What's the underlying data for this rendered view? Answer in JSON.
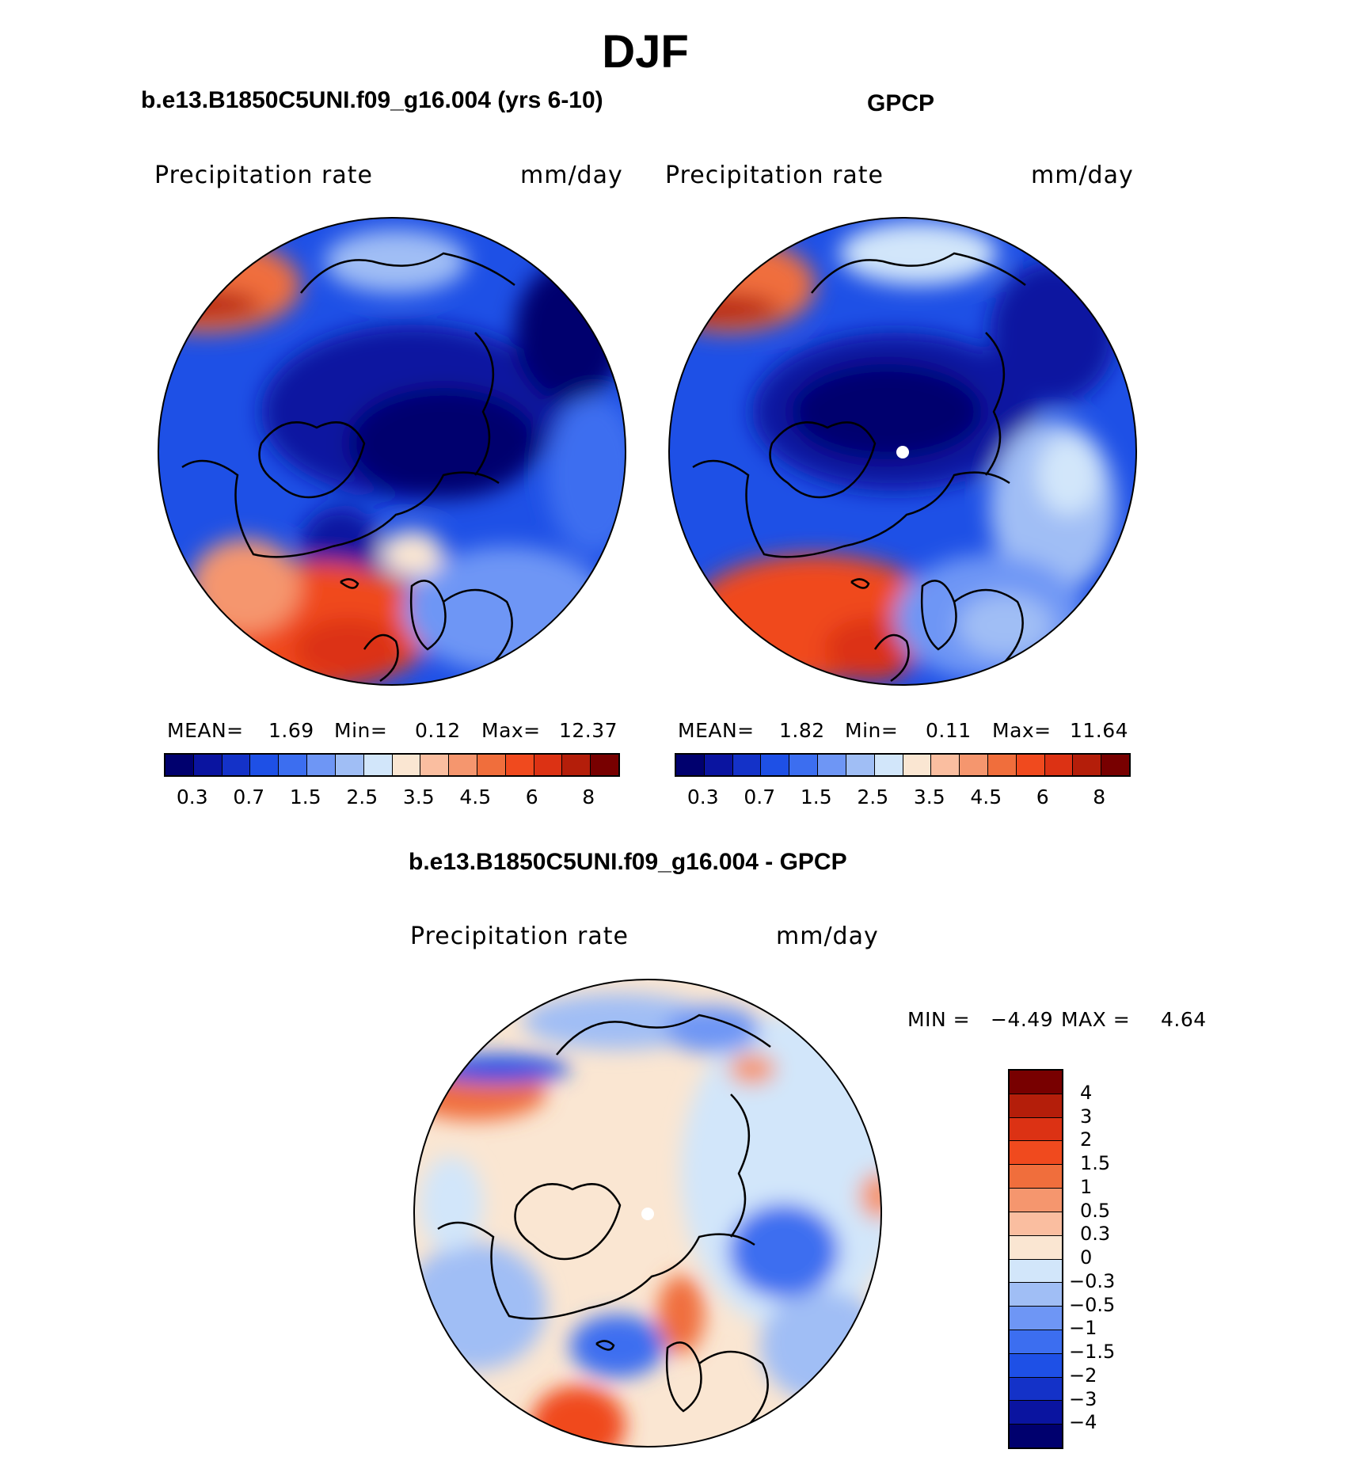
{
  "figure": {
    "title": "DJF"
  },
  "panels": {
    "model": {
      "title": "b.e13.B1850C5UNI.f09_g16.004 (yrs 6-10)",
      "variable": "Precipitation rate",
      "units": "mm/day",
      "stats": {
        "mean_label": "MEAN=",
        "mean": "1.69",
        "min_label": "Min=",
        "min": "0.12",
        "max_label": "Max=",
        "max": "12.37"
      }
    },
    "obs": {
      "title": "GPCP",
      "variable": "Precipitation rate",
      "units": "mm/day",
      "stats": {
        "mean_label": "MEAN=",
        "mean": "1.82",
        "min_label": "Min=",
        "min": "0.11",
        "max_label": "Max=",
        "max": "11.64"
      }
    },
    "diff": {
      "title": "b.e13.B1850C5UNI.f09_g16.004 - GPCP",
      "variable": "Precipitation rate",
      "units": "mm/day",
      "stats": {
        "min_label": "MIN =",
        "min": "−4.49",
        "max_label": "MAX =",
        "max": "4.64"
      }
    }
  },
  "colorbars": {
    "abs": {
      "colors": [
        "#00006e",
        "#0a14a0",
        "#1432c8",
        "#1e50e6",
        "#3c6ef0",
        "#6e96f5",
        "#a0bef5",
        "#d2e6fa",
        "#fae6d2",
        "#fabea0",
        "#f5966e",
        "#f06e3c",
        "#f04a1e",
        "#dc3214",
        "#b41e0a",
        "#780000"
      ],
      "tick_labels": [
        "0.3",
        "0.7",
        "1.5",
        "2.5",
        "3.5",
        "4.5",
        "6",
        "8"
      ]
    },
    "diff": {
      "colors_top_to_bottom": [
        "#780000",
        "#b41e0a",
        "#dc3214",
        "#f04a1e",
        "#f06e3c",
        "#f5966e",
        "#fabea0",
        "#fae6d2",
        "#d2e6fa",
        "#a0bef5",
        "#6e96f5",
        "#3c6ef0",
        "#1e50e6",
        "#1432c8",
        "#0a14a0",
        "#00006e"
      ],
      "tick_labels_top_to_bottom": [
        "4",
        "3",
        "2",
        "1.5",
        "1",
        "0.5",
        "0.3",
        "0",
        "−0.3",
        "−0.5",
        "−1",
        "−1.5",
        "−2",
        "−3",
        "−4"
      ]
    }
  },
  "maps": {
    "projection": "north-polar-stereographic",
    "pole_marker": "white-dot"
  },
  "chart_data": [
    {
      "type": "heatmap",
      "title": "b.e13.B1850C5UNI.f09_g16.004 (yrs 6-10)",
      "field": "Precipitation rate",
      "units": "mm/day",
      "season": "DJF",
      "contour_levels": [
        0.2,
        0.3,
        0.5,
        0.7,
        1,
        1.5,
        2,
        2.5,
        3,
        3.5,
        4,
        4.5,
        5,
        6,
        7,
        8
      ],
      "mean": 1.69,
      "min": 0.12,
      "max": 12.37
    },
    {
      "type": "heatmap",
      "title": "GPCP",
      "field": "Precipitation rate",
      "units": "mm/day",
      "season": "DJF",
      "contour_levels": [
        0.2,
        0.3,
        0.5,
        0.7,
        1,
        1.5,
        2,
        2.5,
        3,
        3.5,
        4,
        4.5,
        5,
        6,
        7,
        8
      ],
      "mean": 1.82,
      "min": 0.11,
      "max": 11.64
    },
    {
      "type": "heatmap",
      "title": "b.e13.B1850C5UNI.f09_g16.004 - GPCP",
      "field": "Precipitation rate",
      "units": "mm/day",
      "season": "DJF",
      "contour_levels": [
        -4,
        -3,
        -2,
        -1.5,
        -1,
        -0.5,
        -0.3,
        0,
        0.3,
        0.5,
        1,
        1.5,
        2,
        3,
        4
      ],
      "min": -4.49,
      "max": 4.64
    }
  ]
}
